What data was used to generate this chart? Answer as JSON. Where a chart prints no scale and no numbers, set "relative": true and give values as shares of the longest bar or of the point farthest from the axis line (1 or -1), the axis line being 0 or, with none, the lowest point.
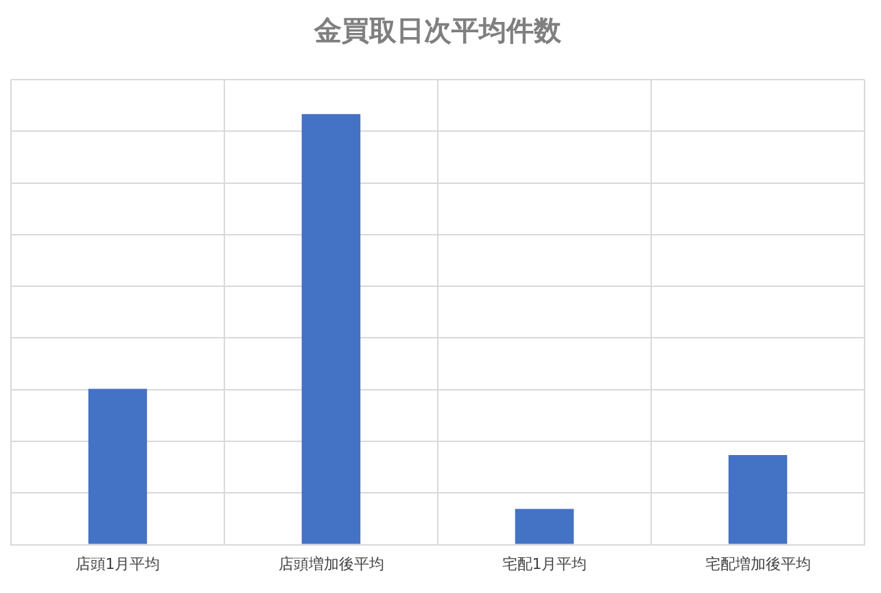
{
  "chart_data": {
    "type": "bar",
    "title": "金買取日次平均件数",
    "categories": [
      "店頭1月平均",
      "店頭増加後平均",
      "宅配1月平均",
      "宅配増加後平均"
    ],
    "values": [
      0.362,
      1,
      0.083,
      0.208
    ],
    "color": "#4472c4",
    "relative": true,
    "grid": true
  }
}
